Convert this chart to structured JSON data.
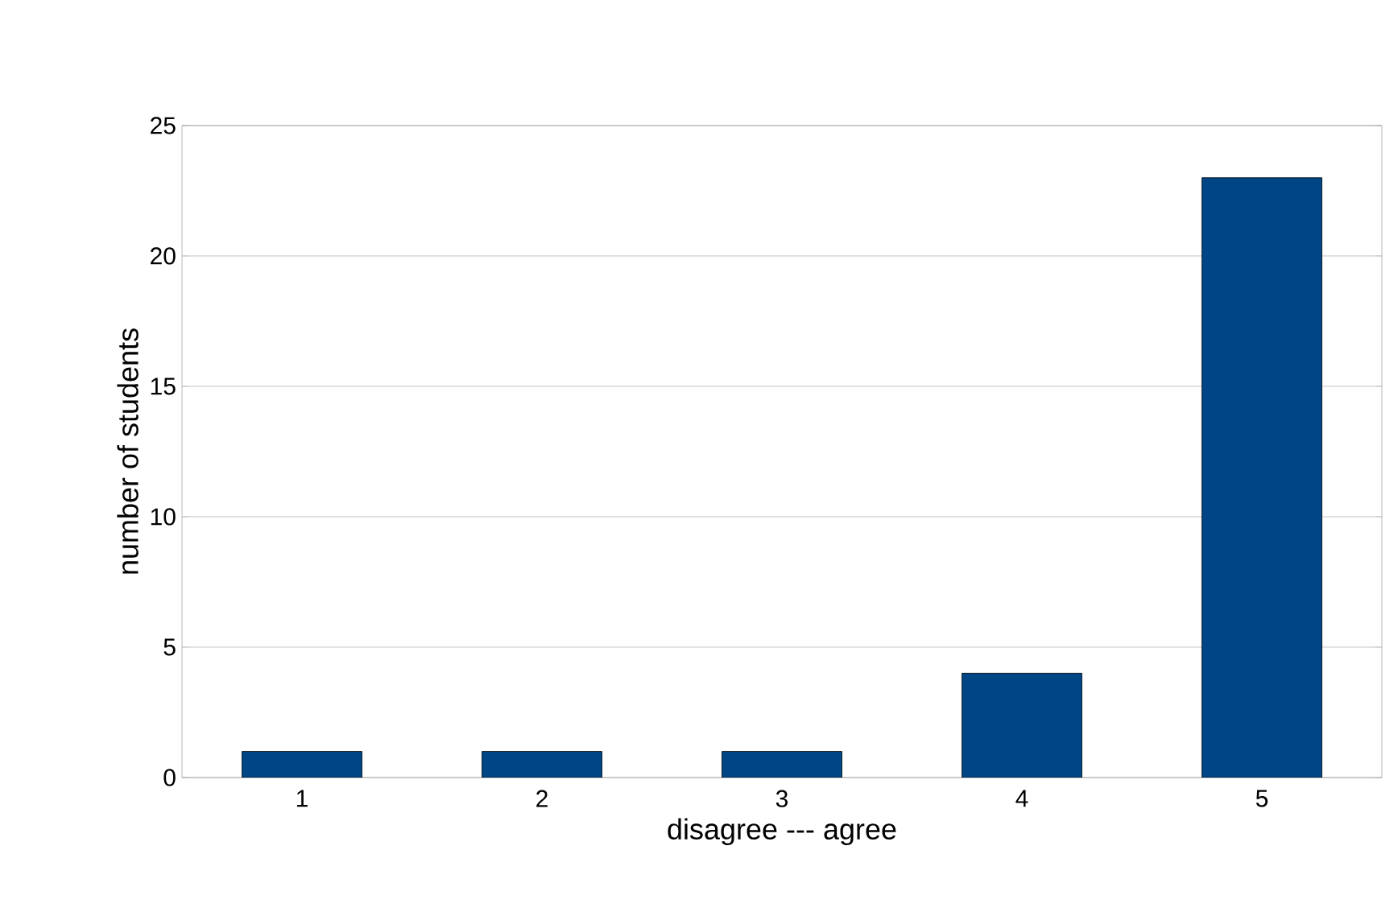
{
  "chart_data": {
    "type": "bar",
    "xlabel": "disagree --- agree",
    "ylabel": "number of students",
    "categories": [
      "1",
      "2",
      "3",
      "4",
      "5"
    ],
    "values": [
      1,
      1,
      1,
      4,
      23
    ],
    "color": "#004586",
    "ylim": [
      0,
      25
    ],
    "yticks": [
      0,
      5,
      10,
      15,
      20,
      25
    ],
    "grid": "y"
  }
}
